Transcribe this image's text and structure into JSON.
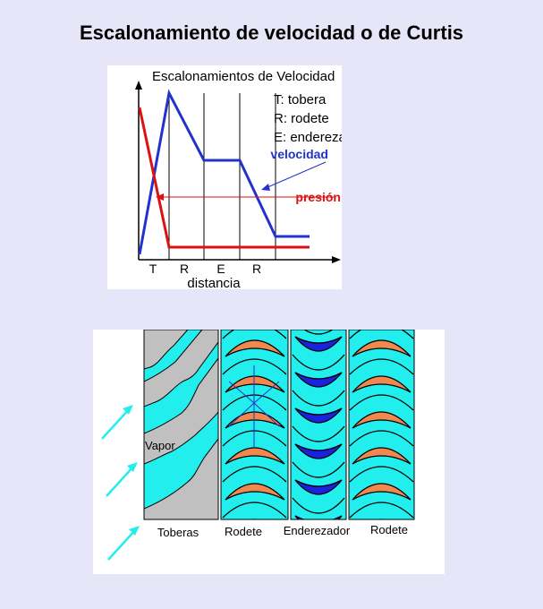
{
  "page": {
    "title": "Escalonamiento de velocidad o de Curtis"
  },
  "graph": {
    "title": "Escalonamientos de Velocidad",
    "legend": [
      "T: tobera",
      "R: rodete",
      "E: enderezador"
    ],
    "velocity_label": "velocidad",
    "pressure_label": "presión",
    "stages": [
      "T",
      "R",
      "E",
      "R"
    ],
    "xlabel": "distancia",
    "colors": {
      "velocity": "#2233cc",
      "pressure": "#dd1111"
    }
  },
  "turbine": {
    "labels": {
      "vapor": "Vapor"
    },
    "sections": [
      "Toberas",
      "Rodete",
      "Enderezador",
      "Rodete"
    ],
    "colors": {
      "cyan": "#22eeee",
      "nozzle": "#c0c0c0",
      "blade_rotor": "#f08850",
      "blade_stator": "#1a22dd"
    }
  }
}
